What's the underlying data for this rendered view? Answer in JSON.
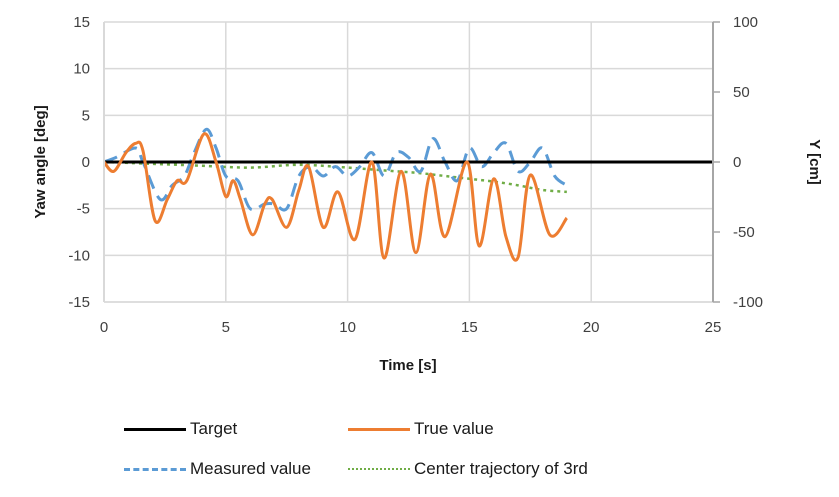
{
  "chart_data": {
    "type": "line",
    "title": "",
    "xlabel": "Time [s]",
    "ylabel": "Yaw angle [deg]",
    "y2label": "Y [cm]",
    "xlim": [
      0,
      25
    ],
    "ylim": [
      -15,
      15
    ],
    "y2lim": [
      -100,
      100
    ],
    "x_ticks": [
      "0",
      "5",
      "10",
      "15",
      "20",
      "25"
    ],
    "y_ticks": [
      "15",
      "10",
      "5",
      "0",
      "-5",
      "-10",
      "-15"
    ],
    "y2_ticks": [
      "100",
      "50",
      "0",
      "-50",
      "-100"
    ],
    "grid": true,
    "legend_position": "bottom",
    "series": [
      {
        "name": "Target",
        "axis": "left",
        "color": "#000000",
        "style": "solid",
        "x": [
          0,
          25
        ],
        "values": [
          0,
          0
        ]
      },
      {
        "name": "True value",
        "axis": "left",
        "color": "#ED7D31",
        "style": "solid",
        "x": [
          0,
          0.4,
          0.9,
          1.3,
          1.6,
          2.1,
          2.6,
          3.0,
          3.4,
          4.1,
          4.6,
          5.0,
          5.3,
          5.6,
          6.1,
          6.6,
          6.9,
          7.5,
          8.0,
          8.4,
          9.0,
          9.6,
          10.3,
          11.0,
          11.5,
          12.2,
          12.8,
          13.4,
          14.0,
          14.9,
          15.4,
          16.0,
          16.5,
          17.0,
          17.5,
          18.3,
          19.0
        ],
        "values": [
          0,
          -1.0,
          1.0,
          2.0,
          1.2,
          -6.3,
          -4.0,
          -2.0,
          -2.0,
          3.0,
          0.0,
          -3.7,
          -2.0,
          -4.0,
          -7.8,
          -4.5,
          -4.0,
          -7.0,
          -3.0,
          -0.5,
          -7.0,
          -3.2,
          -8.3,
          0.0,
          -10.3,
          -1.0,
          -9.7,
          -1.3,
          -8.0,
          0.0,
          -9.0,
          -1.8,
          -8.0,
          -10.2,
          -1.4,
          -7.8,
          -6.0
        ]
      },
      {
        "name": "Measured value",
        "axis": "left",
        "color": "#5B9BD5",
        "style": "dashed",
        "x": [
          0,
          0.5,
          1.3,
          1.6,
          2.3,
          2.8,
          3.3,
          3.7,
          4.2,
          4.6,
          5.0,
          5.5,
          6.0,
          6.6,
          7.0,
          7.5,
          8.0,
          8.5,
          9.0,
          9.5,
          10.0,
          10.5,
          11.0,
          11.5,
          12.0,
          12.5,
          13.0,
          13.5,
          14.0,
          14.5,
          15.0,
          15.5,
          16.0,
          16.5,
          17.0,
          17.5,
          18.0,
          18.5,
          19.0
        ],
        "values": [
          0,
          0.5,
          1.5,
          0.0,
          -4.0,
          -2.5,
          -1.5,
          1.0,
          3.5,
          1.5,
          -1.5,
          -2.0,
          -5.0,
          -4.5,
          -4.5,
          -5.0,
          -1.5,
          -0.5,
          -1.5,
          -0.5,
          -1.5,
          -0.5,
          1.0,
          -1.5,
          1.0,
          0.5,
          -1.0,
          2.5,
          0.0,
          -2.0,
          1.5,
          -0.5,
          1.0,
          2.0,
          -1.0,
          0.0,
          1.5,
          -1.5,
          -2.5
        ]
      },
      {
        "name": "Center trajectory of 3rd",
        "axis": "left",
        "color": "#70AD47",
        "style": "dotted",
        "x": [
          0,
          2,
          4,
          6,
          8,
          10,
          11,
          12,
          13,
          14,
          15,
          16,
          17,
          18,
          19
        ],
        "values": [
          0,
          -0.2,
          -0.4,
          -0.6,
          -0.3,
          -0.6,
          -0.8,
          -1.0,
          -1.2,
          -1.5,
          -1.8,
          -2.1,
          -2.5,
          -3.0,
          -3.2
        ]
      }
    ]
  },
  "legend": {
    "items": [
      {
        "label": "Target",
        "color": "#000000",
        "style": "solid"
      },
      {
        "label": "True value",
        "color": "#ED7D31",
        "style": "solid"
      },
      {
        "label": "Measured value",
        "color": "#5B9BD5",
        "style": "dashed"
      },
      {
        "label": "Center trajectory of 3rd",
        "color": "#70AD47",
        "style": "dotted"
      }
    ]
  }
}
